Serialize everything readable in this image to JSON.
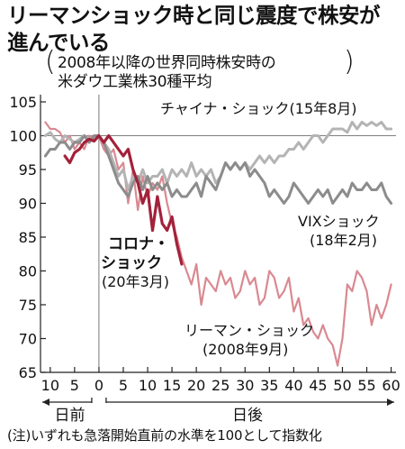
{
  "title_line1": "リーマンショック時と同じ震度で株安が",
  "title_line2": "進んでいる",
  "subtitle_line1": "2008年以降の世界同時株安時の",
  "subtitle_line2": "米ダウ工業株30種平均",
  "note": "(注)いずれも急落開始直前の水準を100として指数化",
  "x_before_label": "日前",
  "x_after_label": "日後",
  "colors": {
    "corona": "#a3213a",
    "lehman": "#d98991",
    "china": "#b4b4b4",
    "vix": "#8c8c8c",
    "axis": "#222222"
  },
  "chart_data": {
    "type": "line",
    "xlim": [
      -12,
      61
    ],
    "ylim": [
      65,
      105
    ],
    "yticks": [
      65,
      70,
      75,
      80,
      85,
      90,
      95,
      100,
      105
    ],
    "xticks": [
      -10,
      -5,
      0,
      5,
      10,
      15,
      20,
      25,
      30,
      35,
      40,
      45,
      50,
      55,
      60
    ],
    "xtick_labels": [
      "10",
      "5",
      "0",
      "5",
      "10",
      "15",
      "20",
      "25",
      "30",
      "35",
      "40",
      "45",
      "50",
      "55",
      "60"
    ],
    "reference_line": 100,
    "series": [
      {
        "name": "リーマン・ショック(2008年9月)",
        "label_line1": "リーマン・ショック",
        "label_line2": "(2008年9月)",
        "key": "lehman",
        "points": [
          [
            -11,
            102
          ],
          [
            -10,
            101
          ],
          [
            -9,
            101
          ],
          [
            -8,
            100.5
          ],
          [
            -7,
            99
          ],
          [
            -6,
            100
          ],
          [
            -5,
            98
          ],
          [
            -4,
            99
          ],
          [
            -3,
            98
          ],
          [
            -2,
            100
          ],
          [
            -1,
            99.5
          ],
          [
            0,
            100
          ],
          [
            1,
            98
          ],
          [
            2,
            97
          ],
          [
            3,
            98
          ],
          [
            4,
            95
          ],
          [
            5,
            96
          ],
          [
            6,
            90
          ],
          [
            7,
            95
          ],
          [
            8,
            89
          ],
          [
            9,
            94
          ],
          [
            10,
            91
          ],
          [
            11,
            93
          ],
          [
            12,
            92
          ],
          [
            13,
            94
          ],
          [
            14,
            90
          ],
          [
            15,
            87
          ],
          [
            16,
            85
          ],
          [
            17,
            82
          ],
          [
            18,
            80
          ],
          [
            19,
            78
          ],
          [
            20,
            81
          ],
          [
            21,
            75
          ],
          [
            22,
            79
          ],
          [
            23,
            78
          ],
          [
            24,
            77
          ],
          [
            25,
            80
          ],
          [
            26,
            78
          ],
          [
            27,
            79
          ],
          [
            28,
            76
          ],
          [
            29,
            77
          ],
          [
            30,
            80
          ],
          [
            31,
            78
          ],
          [
            32,
            79
          ],
          [
            33,
            75
          ],
          [
            34,
            76
          ],
          [
            35,
            80
          ],
          [
            36,
            79
          ],
          [
            37,
            76
          ],
          [
            38,
            77
          ],
          [
            39,
            79
          ],
          [
            40,
            74
          ],
          [
            41,
            76
          ],
          [
            42,
            72
          ],
          [
            43,
            73
          ],
          [
            44,
            71
          ],
          [
            45,
            70
          ],
          [
            46,
            72
          ],
          [
            47,
            70
          ],
          [
            48,
            69
          ],
          [
            49,
            66
          ],
          [
            50,
            70
          ],
          [
            51,
            78
          ],
          [
            52,
            77
          ],
          [
            53,
            80
          ],
          [
            54,
            79
          ],
          [
            55,
            77
          ],
          [
            56,
            72
          ],
          [
            57,
            75
          ],
          [
            58,
            73
          ],
          [
            59,
            75
          ],
          [
            60,
            78
          ]
        ]
      },
      {
        "name": "チャイナ・ショック(15年8月)",
        "label_line1": "チャイナ・ショック(15年8月)",
        "key": "china",
        "points": [
          [
            -11,
            100
          ],
          [
            -10,
            100.5
          ],
          [
            -9,
            99.5
          ],
          [
            -8,
            99
          ],
          [
            -7,
            100
          ],
          [
            -6,
            99.5
          ],
          [
            -5,
            99
          ],
          [
            -4,
            99.5
          ],
          [
            -3,
            100
          ],
          [
            -2,
            99.5
          ],
          [
            -1,
            99.8
          ],
          [
            0,
            100
          ],
          [
            1,
            99
          ],
          [
            2,
            98
          ],
          [
            3,
            96
          ],
          [
            4,
            94
          ],
          [
            5,
            95
          ],
          [
            6,
            92
          ],
          [
            7,
            94
          ],
          [
            8,
            93
          ],
          [
            9,
            95
          ],
          [
            10,
            93
          ],
          [
            11,
            94
          ],
          [
            12,
            94
          ],
          [
            13,
            95
          ],
          [
            14,
            93
          ],
          [
            15,
            95
          ],
          [
            16,
            94
          ],
          [
            17,
            95
          ],
          [
            18,
            94
          ],
          [
            19,
            96
          ],
          [
            20,
            94
          ],
          [
            21,
            95
          ],
          [
            22,
            94
          ],
          [
            23,
            95
          ],
          [
            24,
            93
          ],
          [
            25,
            94
          ],
          [
            26,
            96
          ],
          [
            27,
            95
          ],
          [
            28,
            96
          ],
          [
            29,
            95
          ],
          [
            30,
            96
          ],
          [
            31,
            95
          ],
          [
            32,
            96
          ],
          [
            33,
            97
          ],
          [
            34,
            96
          ],
          [
            35,
            97
          ],
          [
            36,
            96
          ],
          [
            37,
            97
          ],
          [
            38,
            97
          ],
          [
            39,
            98
          ],
          [
            40,
            98
          ],
          [
            41,
            99
          ],
          [
            42,
            98
          ],
          [
            43,
            99
          ],
          [
            44,
            100
          ],
          [
            45,
            100
          ],
          [
            46,
            99
          ],
          [
            47,
            100
          ],
          [
            48,
            101
          ],
          [
            49,
            101
          ],
          [
            50,
            101
          ],
          [
            51,
            100.5
          ],
          [
            52,
            102
          ],
          [
            53,
            101
          ],
          [
            54,
            102
          ],
          [
            55,
            101.5
          ],
          [
            56,
            102
          ],
          [
            57,
            101.5
          ],
          [
            58,
            102
          ],
          [
            59,
            101
          ],
          [
            60,
            101
          ]
        ]
      },
      {
        "name": "VIXショック(18年2月)",
        "label_line1": "VIXショック",
        "label_line2": "(18年2月)",
        "key": "vix",
        "points": [
          [
            -11,
            97
          ],
          [
            -10,
            98
          ],
          [
            -9,
            98
          ],
          [
            -8,
            99
          ],
          [
            -7,
            99
          ],
          [
            -6,
            98
          ],
          [
            -5,
            99
          ],
          [
            -4,
            99
          ],
          [
            -3,
            100
          ],
          [
            -2,
            99
          ],
          [
            -1,
            100
          ],
          [
            0,
            100
          ],
          [
            1,
            99
          ],
          [
            2,
            97
          ],
          [
            3,
            95
          ],
          [
            4,
            93
          ],
          [
            5,
            92
          ],
          [
            6,
            91
          ],
          [
            7,
            93
          ],
          [
            8,
            94
          ],
          [
            9,
            92
          ],
          [
            10,
            94
          ],
          [
            11,
            92
          ],
          [
            12,
            93
          ],
          [
            13,
            92
          ],
          [
            14,
            93
          ],
          [
            15,
            91
          ],
          [
            16,
            92
          ],
          [
            17,
            91
          ],
          [
            18,
            91
          ],
          [
            19,
            92
          ],
          [
            20,
            93
          ],
          [
            21,
            91
          ],
          [
            22,
            94
          ],
          [
            23,
            93
          ],
          [
            24,
            92
          ],
          [
            25,
            94
          ],
          [
            26,
            96
          ],
          [
            27,
            95
          ],
          [
            28,
            96
          ],
          [
            29,
            95
          ],
          [
            30,
            96
          ],
          [
            31,
            94
          ],
          [
            32,
            95
          ],
          [
            33,
            94
          ],
          [
            34,
            93
          ],
          [
            35,
            91
          ],
          [
            36,
            92
          ],
          [
            37,
            91
          ],
          [
            38,
            90
          ],
          [
            39,
            91
          ],
          [
            40,
            93
          ],
          [
            41,
            92
          ],
          [
            42,
            91
          ],
          [
            43,
            90
          ],
          [
            44,
            91
          ],
          [
            45,
            92
          ],
          [
            46,
            91
          ],
          [
            47,
            92
          ],
          [
            48,
            90
          ],
          [
            49,
            91
          ],
          [
            50,
            92
          ],
          [
            51,
            91
          ],
          [
            52,
            93
          ],
          [
            53,
            92
          ],
          [
            54,
            92
          ],
          [
            55,
            93
          ],
          [
            56,
            92
          ],
          [
            57,
            92
          ],
          [
            58,
            93
          ],
          [
            59,
            91
          ],
          [
            60,
            90
          ]
        ]
      },
      {
        "name": "コロナ・ショック(20年3月)",
        "label_line1": "コロナ・",
        "label_line2": "ショック",
        "label_line3": "(20年3月)",
        "key": "corona",
        "points": [
          [
            -7,
            97
          ],
          [
            -6,
            96
          ],
          [
            -5,
            97.5
          ],
          [
            -4,
            98
          ],
          [
            -3,
            99
          ],
          [
            -2,
            99.5
          ],
          [
            -1,
            99.2
          ],
          [
            0,
            100
          ],
          [
            1,
            99
          ],
          [
            2,
            100
          ],
          [
            3,
            99
          ],
          [
            4,
            98
          ],
          [
            5,
            97
          ],
          [
            6,
            98
          ],
          [
            7,
            95
          ],
          [
            8,
            93
          ],
          [
            9,
            90
          ],
          [
            10,
            92
          ],
          [
            11,
            86
          ],
          [
            12,
            91
          ],
          [
            13,
            87
          ],
          [
            14,
            86
          ],
          [
            15,
            88
          ],
          [
            16,
            84
          ],
          [
            17,
            81
          ]
        ]
      }
    ]
  }
}
